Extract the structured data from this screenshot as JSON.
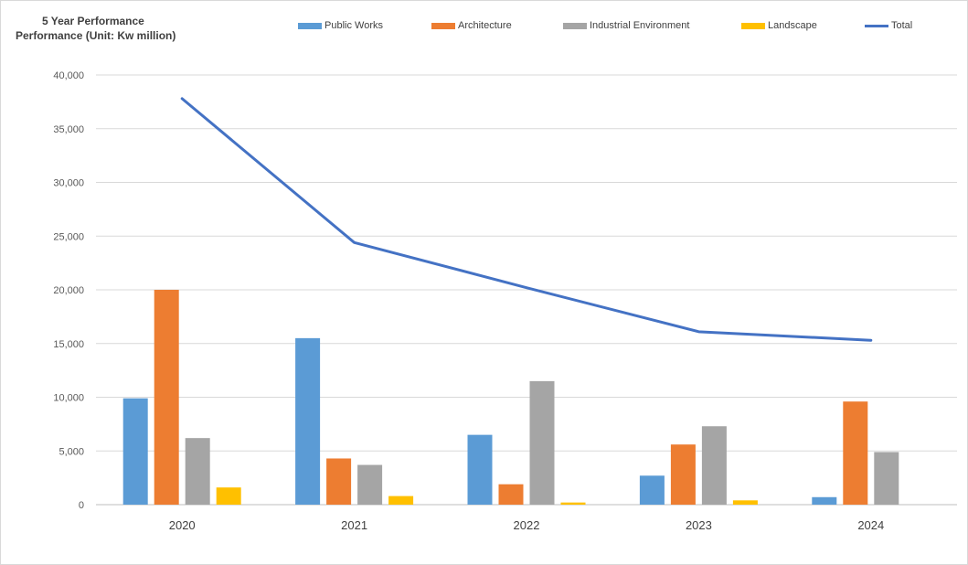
{
  "chart_data": {
    "type": "bar",
    "title": "5 Year Performance",
    "subtitle": "Performance (Unit: Kw million)",
    "categories": [
      "2020",
      "2021",
      "2022",
      "2023",
      "2024"
    ],
    "series": [
      {
        "name": "Public Works",
        "type": "bar",
        "color": "#5b9bd5",
        "values": [
          9900,
          15500,
          6500,
          2700,
          700
        ]
      },
      {
        "name": "Architecture",
        "type": "bar",
        "color": "#ed7d31",
        "values": [
          20000,
          4300,
          1900,
          5600,
          9600
        ]
      },
      {
        "name": "Industrial Environment",
        "type": "bar",
        "color": "#a5a5a5",
        "values": [
          6200,
          3700,
          11500,
          7300,
          4900
        ]
      },
      {
        "name": "Landscape",
        "type": "bar",
        "color": "#ffc000",
        "values": [
          1600,
          800,
          200,
          400,
          0
        ]
      },
      {
        "name": "Total",
        "type": "line",
        "color": "#4472c4",
        "values": [
          37800,
          24400,
          20200,
          16100,
          15300
        ]
      }
    ],
    "y_ticks": [
      "0",
      "5,000",
      "10,000",
      "15,000",
      "20,000",
      "25,000",
      "30,000",
      "35,000",
      "40,000"
    ],
    "ylim": [
      0,
      40000
    ],
    "xlabel": "",
    "ylabel": "",
    "grid": true,
    "legend_position": "top"
  }
}
